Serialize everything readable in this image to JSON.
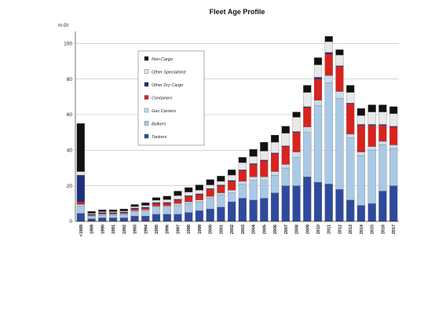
{
  "chart_data": {
    "type": "bar",
    "stacked": true,
    "title": "Fleet Age Profile",
    "unit_label": "m.Gt",
    "ylim": [
      0,
      105
    ],
    "yticks": [
      0,
      20,
      40,
      60,
      80,
      100
    ],
    "grid": true,
    "legend_position": "top-left",
    "categories": [
      "<1989",
      "1989",
      "1990",
      "1991",
      "1992",
      "1993",
      "1994",
      "1995",
      "1996",
      "1997",
      "1998",
      "1999",
      "2000",
      "2001",
      "2002",
      "2003",
      "2004",
      "2005",
      "2006",
      "2007",
      "2008",
      "2009",
      "2010",
      "2011",
      "2012",
      "2013",
      "2014",
      "2015",
      "2016",
      "2017"
    ],
    "series": [
      {
        "name": "Tankers",
        "color": "#2e4a9e",
        "values": [
          4.5,
          1.5,
          2,
          2,
          2,
          3,
          3,
          4,
          4,
          4,
          5,
          6,
          7,
          8,
          11,
          13,
          12,
          13,
          16,
          20,
          20,
          25,
          22,
          21,
          18,
          12,
          9,
          10,
          17,
          20
        ]
      },
      {
        "name": "Bulkers",
        "color": "#a9c9e6",
        "values": [
          4,
          1.5,
          1.5,
          1.5,
          1.8,
          2.5,
          3,
          4,
          4,
          5,
          5,
          5,
          6,
          7,
          5,
          8,
          11,
          10,
          10,
          10,
          16,
          25,
          43,
          57,
          51,
          35,
          28,
          30,
          26,
          21
        ]
      },
      {
        "name": "Gas Carriers",
        "color": "#c9dcee",
        "values": [
          1,
          0.3,
          0.5,
          0.5,
          0.5,
          0.5,
          0.5,
          0.6,
          0.7,
          1,
          1,
          1,
          1,
          1,
          1.5,
          1.5,
          2,
          2,
          2,
          2,
          3,
          3,
          3,
          4,
          4,
          2,
          2,
          2,
          2,
          2
        ]
      },
      {
        "name": "Containers",
        "color": "#d8231f",
        "values": [
          1.5,
          0.3,
          0.5,
          0.5,
          0.5,
          1,
          1,
          1.5,
          1.5,
          2,
          3,
          3,
          4,
          4,
          5,
          6,
          7,
          9,
          10,
          10,
          11,
          11,
          12,
          12,
          14,
          17,
          15,
          12,
          9,
          10
        ]
      },
      {
        "name": "Other Dry Cargo",
        "color": "#1f2f7a",
        "values": [
          15,
          0.5,
          0.5,
          0.5,
          0.5,
          0.5,
          0.5,
          0.5,
          0.5,
          0.5,
          0.5,
          0.5,
          0.5,
          0.5,
          0.5,
          0.5,
          0.5,
          0.5,
          0.5,
          0.5,
          0.5,
          0.5,
          1,
          1,
          0.5,
          0.5,
          0.5,
          0.5,
          0.5,
          0.5
        ]
      },
      {
        "name": "Other Specialised",
        "color": "#e8e8e8",
        "values": [
          2,
          0.5,
          0.5,
          0.5,
          0.5,
          0.8,
          1,
          1.3,
          1.5,
          2,
          2,
          2,
          2,
          2,
          3,
          4,
          4,
          5,
          6,
          7,
          8,
          8,
          7,
          6,
          6,
          6,
          5,
          7,
          7,
          7
        ]
      },
      {
        "name": "Non-Cargo",
        "color": "#111111",
        "values": [
          27,
          1,
          1,
          1,
          1.2,
          1.2,
          1.5,
          1.5,
          2,
          2.5,
          2.5,
          3,
          3,
          3,
          3,
          3,
          4,
          5,
          4,
          4,
          3,
          4,
          4,
          3,
          3,
          4,
          4,
          4,
          4,
          4
        ]
      }
    ]
  }
}
